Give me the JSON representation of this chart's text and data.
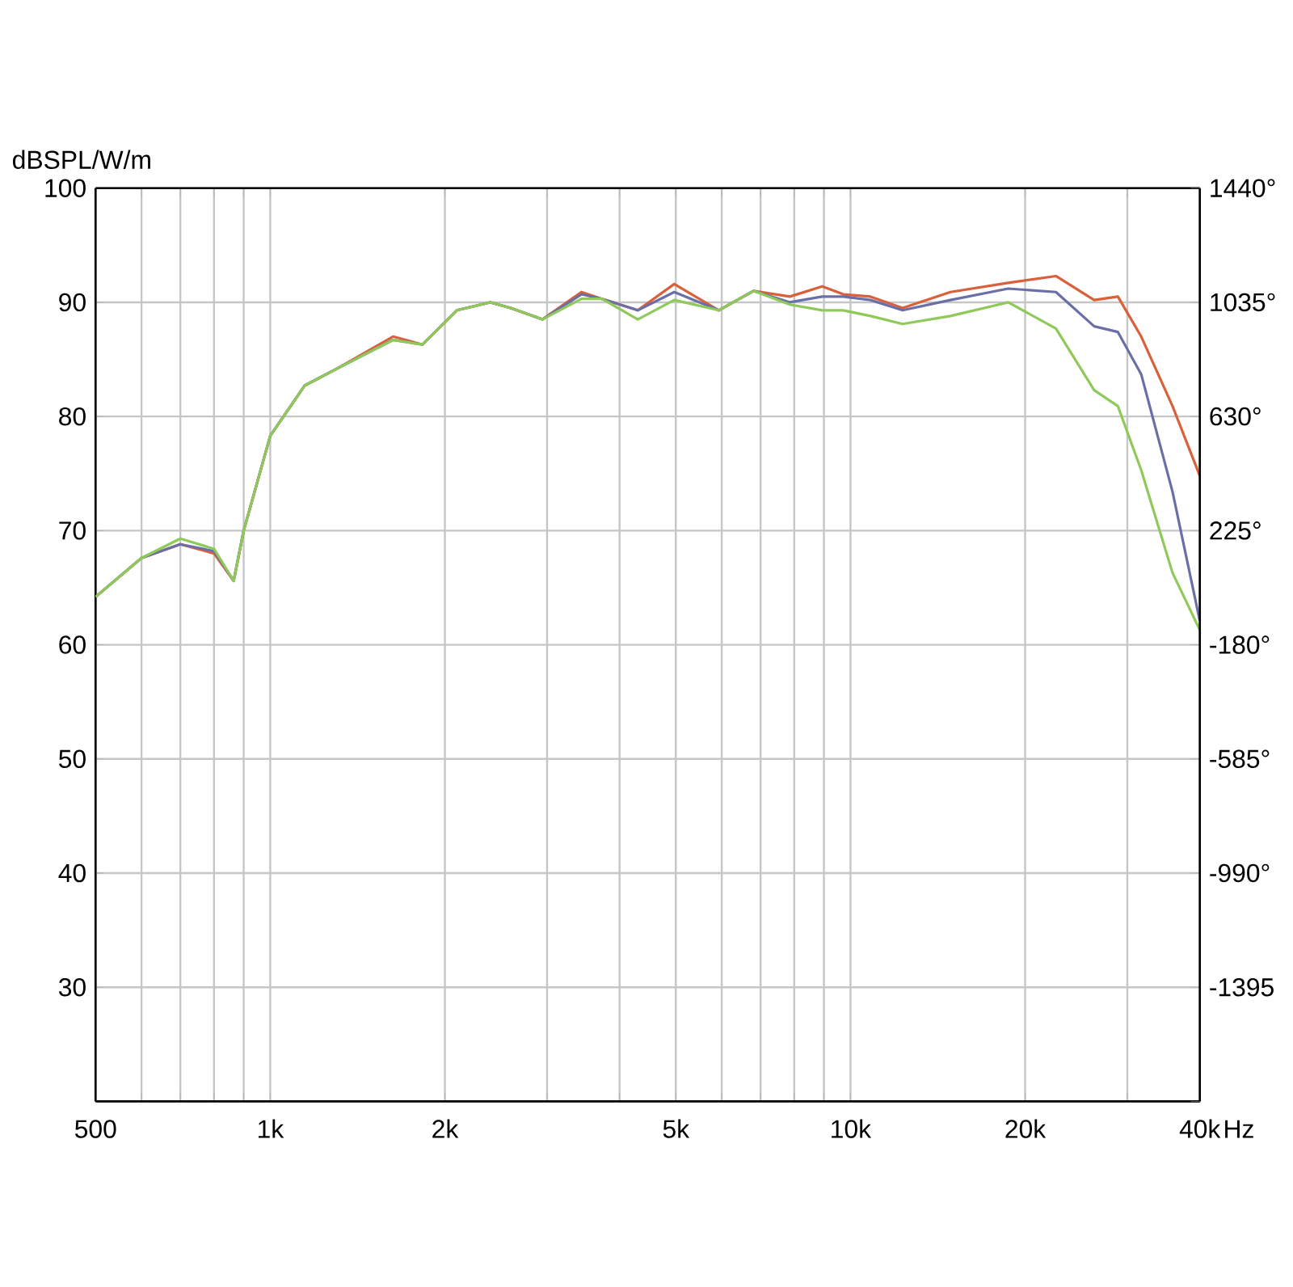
{
  "chart_data": {
    "type": "line",
    "ylabel": "dBSPL/W/m",
    "log": "x",
    "grid": true,
    "marker": "none",
    "line_style": "solid",
    "xlim": [
      500,
      40000
    ],
    "ylim": [
      20,
      100
    ],
    "y2lim": [
      -1800,
      1440
    ],
    "xticks": [
      500,
      {
        "value": 600,
        "label": null
      },
      {
        "value": 700,
        "label": null
      },
      {
        "value": 800,
        "label": null
      },
      {
        "value": 900,
        "label": null
      },
      {
        "value": 1000,
        "label": "1k"
      },
      {
        "value": 2000,
        "label": "2k"
      },
      {
        "value": 3000,
        "label": null
      },
      {
        "value": 4000,
        "label": null
      },
      {
        "value": 5000,
        "label": "5k"
      },
      {
        "value": 6000,
        "label": null
      },
      {
        "value": 7000,
        "label": null
      },
      {
        "value": 8000,
        "label": null
      },
      {
        "value": 9000,
        "label": null
      },
      {
        "value": 10000,
        "label": "10k"
      },
      {
        "value": 20000,
        "label": "20k"
      },
      {
        "value": 30000,
        "label": null
      },
      {
        "value": 40000,
        "label": "40k"
      }
    ],
    "xlabel": "Hz",
    "yticks": [
      {
        "value": 20,
        "label": null
      },
      30,
      40,
      50,
      60,
      70,
      80,
      90,
      100
    ],
    "y2ticks": [
      {
        "value": -1800,
        "label": null
      },
      {
        "value": -1395,
        "label": "-1395"
      },
      {
        "value": -990,
        "label": "-990°"
      },
      {
        "value": -585,
        "label": "-585°"
      },
      {
        "value": -180,
        "label": "-180°"
      },
      {
        "value": 225,
        "label": "225°"
      },
      {
        "value": 630,
        "label": "630°"
      },
      {
        "value": 1035,
        "label": "1035°"
      },
      {
        "value": 1440,
        "label": "1440°"
      }
    ],
    "x": [
      500,
      600,
      700,
      800,
      865,
      900,
      1000,
      1146,
      1304,
      1628,
      1830,
      2098,
      2395,
      2597,
      2945,
      3438,
      3732,
      4300,
      4969,
      5930,
      6805,
      7865,
      8939,
      9720,
      10825,
      12300,
      14870,
      18700,
      22600,
      26300,
      28900,
      31700,
      35900,
      40000
    ],
    "series": [
      {
        "color": "#d9603b",
        "values": [
          64.2,
          67.6,
          68.8,
          68.0,
          65.6,
          70.0,
          78.3,
          82.7,
          84.2,
          87.0,
          86.3,
          89.3,
          90.0,
          89.5,
          88.5,
          90.9,
          90.3,
          89.3,
          91.6,
          89.3,
          91.0,
          90.5,
          91.4,
          90.7,
          90.5,
          89.5,
          90.9,
          91.7,
          92.3,
          90.2,
          90.5,
          87.0,
          80.9,
          74.8
        ]
      },
      {
        "color": "#6b6fa8",
        "values": [
          64.2,
          67.6,
          68.8,
          68.2,
          65.6,
          70.0,
          78.3,
          82.7,
          84.2,
          86.7,
          86.3,
          89.3,
          90.0,
          89.5,
          88.5,
          90.7,
          90.3,
          89.3,
          90.9,
          89.3,
          91.0,
          90.0,
          90.5,
          90.5,
          90.2,
          89.3,
          90.2,
          91.2,
          90.9,
          87.9,
          87.4,
          83.7,
          73.4,
          62.1
        ]
      },
      {
        "color": "#8fc95a",
        "values": [
          64.2,
          67.6,
          69.3,
          68.4,
          65.6,
          70.0,
          78.3,
          82.7,
          84.2,
          86.7,
          86.3,
          89.3,
          90.0,
          89.5,
          88.5,
          90.3,
          90.3,
          88.5,
          90.2,
          89.3,
          91.0,
          89.8,
          89.3,
          89.3,
          88.8,
          88.1,
          88.8,
          90.0,
          87.7,
          82.3,
          80.9,
          75.3,
          66.3,
          61.3
        ]
      }
    ]
  }
}
